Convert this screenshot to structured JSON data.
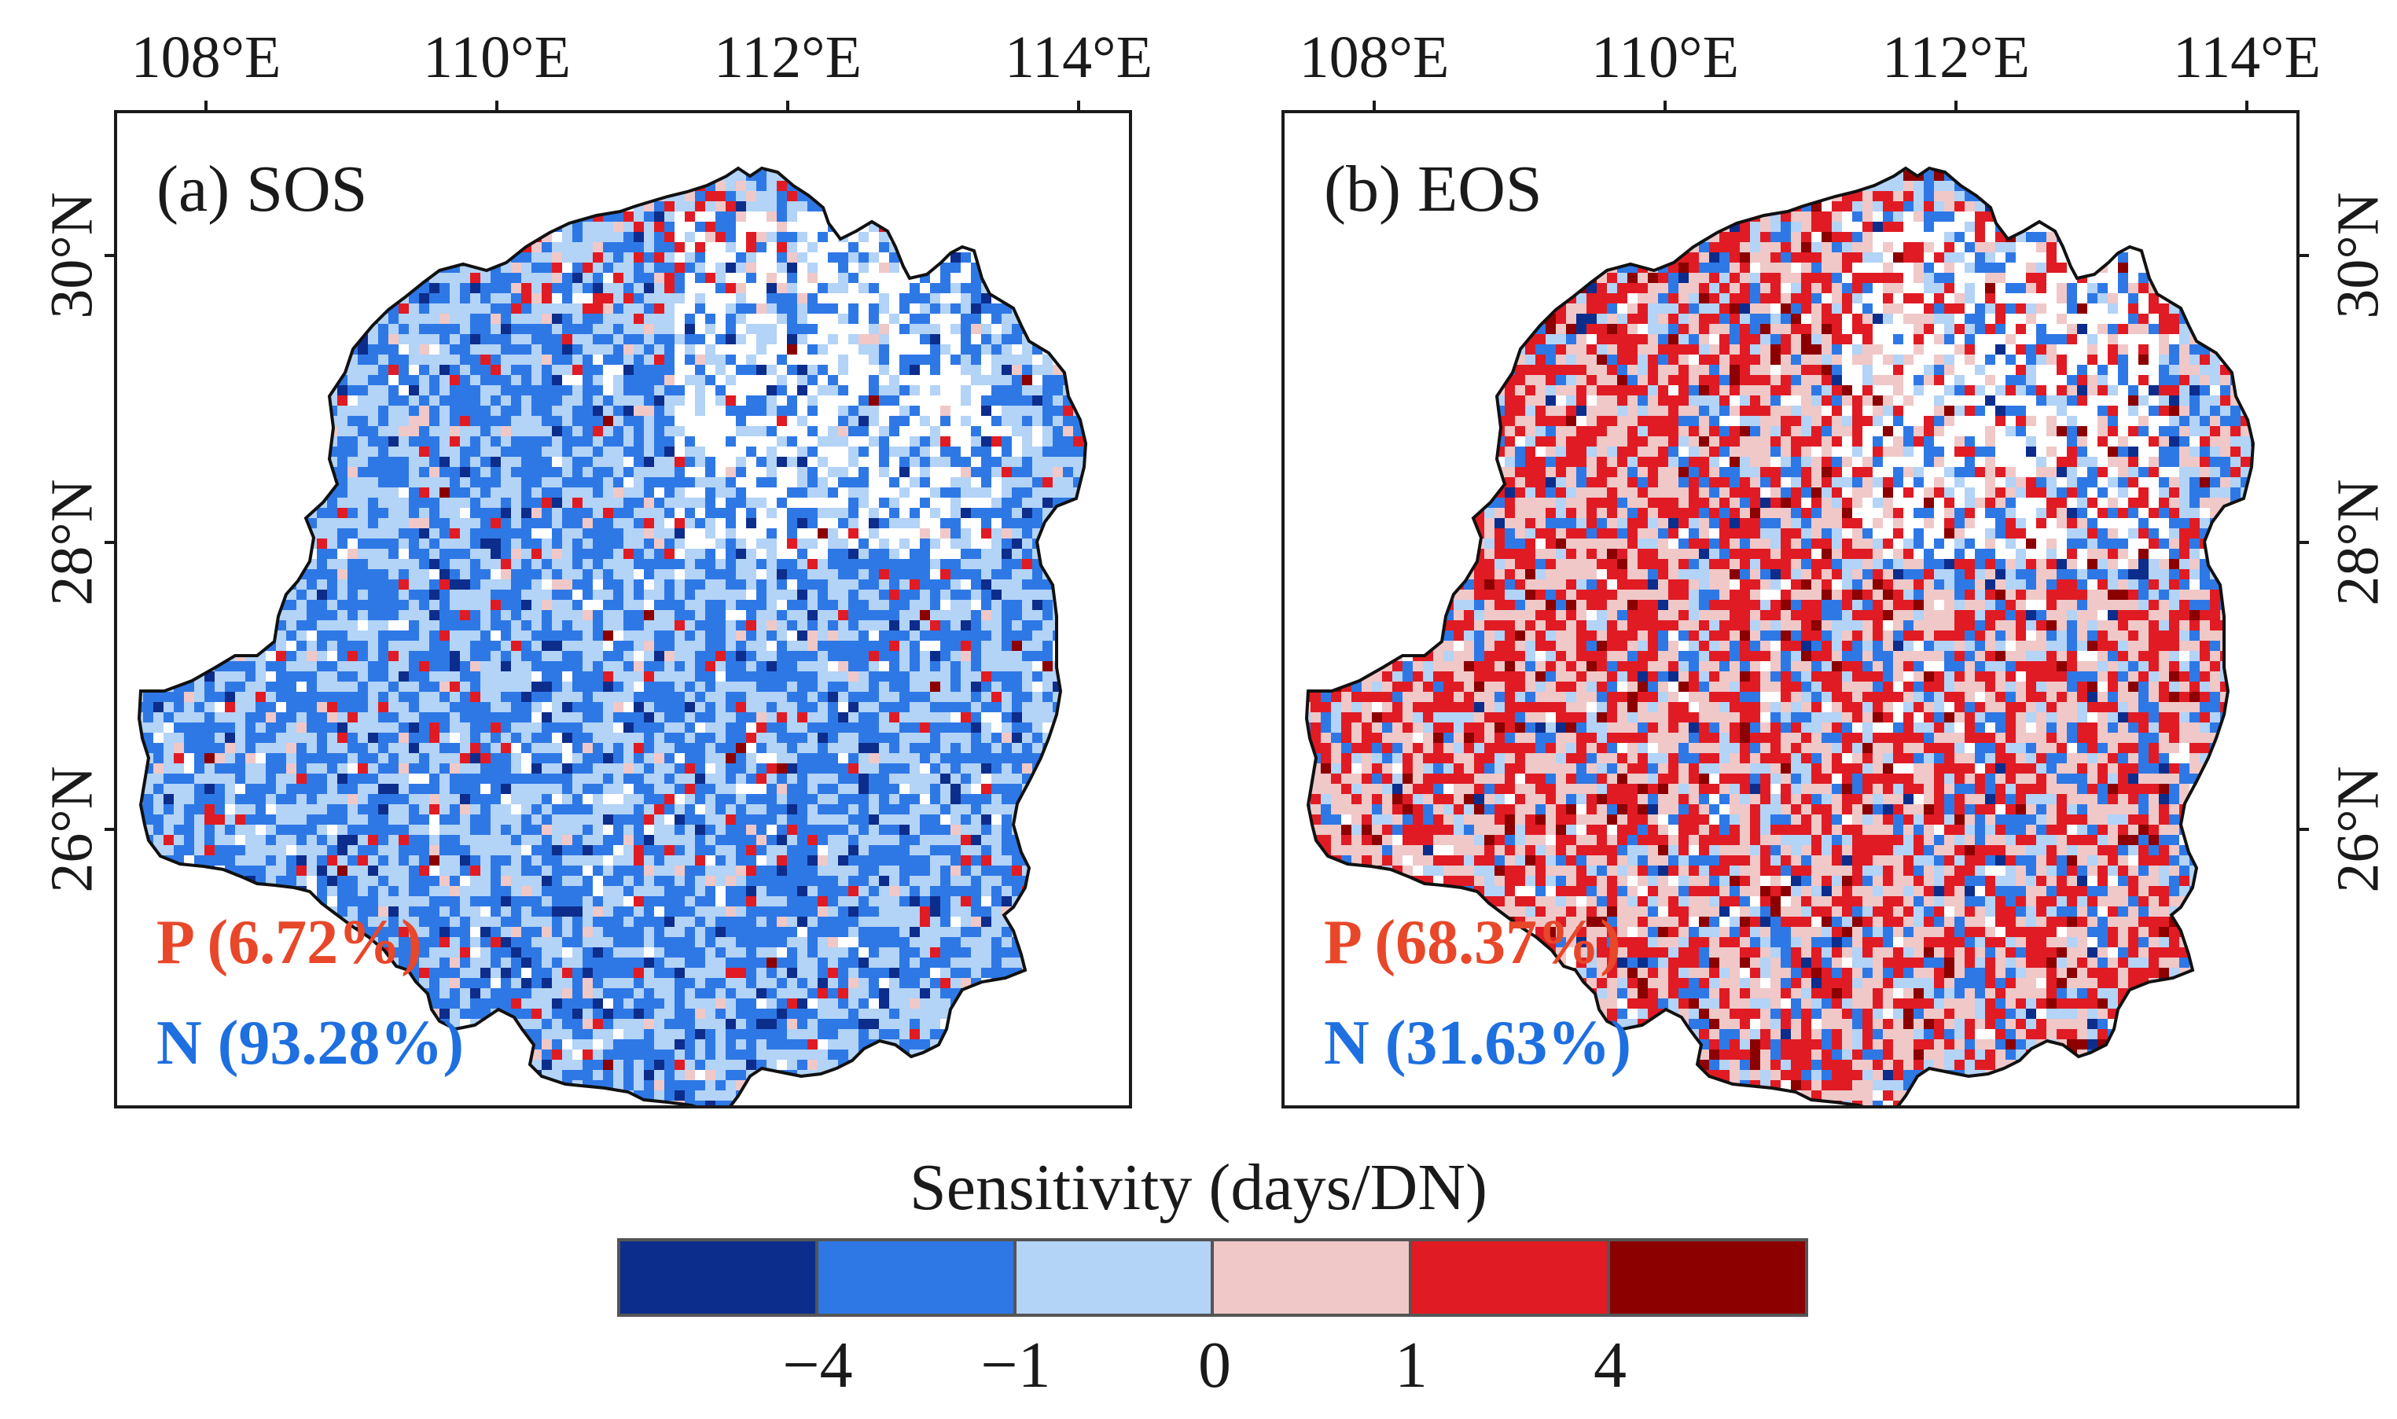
{
  "panels": [
    {
      "title": "(a) SOS",
      "positive_label": "P (6.72%)",
      "negative_label": "N (93.28%)",
      "positive_pct": 6.72,
      "negative_pct": 93.28
    },
    {
      "title": "(b) EOS",
      "positive_label": "P (68.37%)",
      "negative_label": "N (31.63%)",
      "positive_pct": 68.37,
      "negative_pct": 31.63
    }
  ],
  "axes": {
    "longitude_ticks": [
      "108°E",
      "110°E",
      "112°E",
      "114°E"
    ],
    "latitude_ticks": [
      "30°N",
      "28°N",
      "26°N"
    ]
  },
  "legend": {
    "title": "Sensitivity (days/DN)",
    "tick_labels": [
      "−4",
      "−1",
      "0",
      "1",
      "4"
    ],
    "colors": [
      "#0d2d8c",
      "#2e78e6",
      "#b3d3f7",
      "#f0c8c8",
      "#e01b24",
      "#8c0000"
    ]
  },
  "colors": {
    "positive_text": "#e8472a",
    "negative_text": "#1e6fe0",
    "outline": "#111111"
  }
}
